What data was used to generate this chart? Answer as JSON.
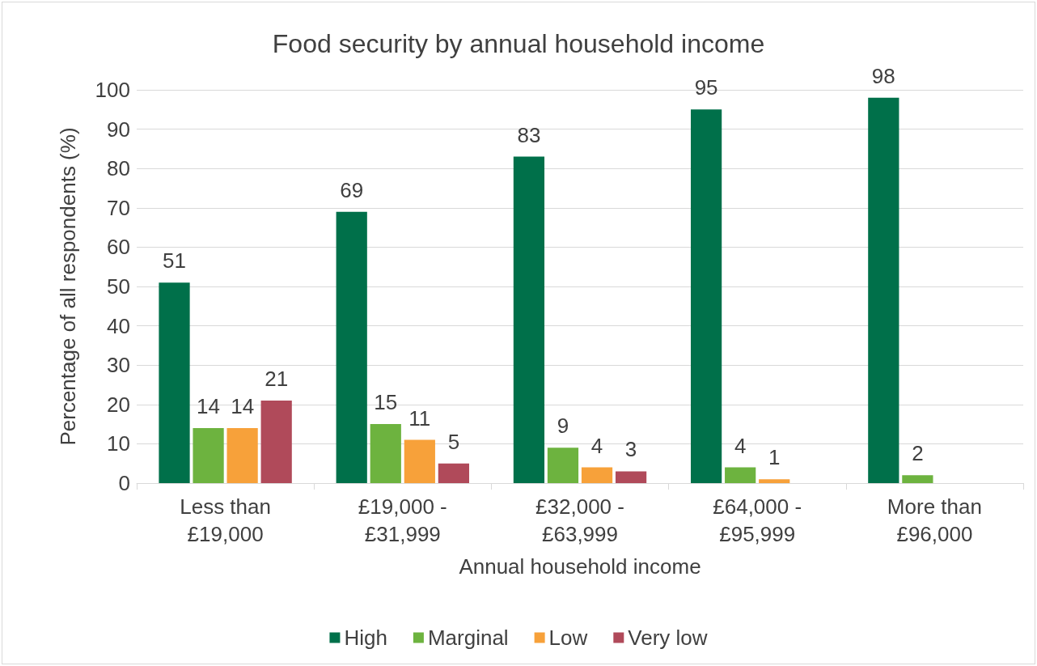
{
  "chart_data": {
    "type": "bar",
    "title": "Food security by annual household income",
    "xlabel": "Annual household income",
    "ylabel": "Percentage of all respondents (%)",
    "categories": [
      "Less than\n£19,000",
      "£19,000 -\n£31,999",
      "£32,000 -\n£63,999",
      "£64,000 -\n£95,999",
      "More than\n£96,000"
    ],
    "series": [
      {
        "name": "High",
        "color": "#00704a",
        "values": [
          51,
          69,
          83,
          95,
          98
        ],
        "value_labels": [
          "51",
          "69",
          "83",
          "95",
          "98"
        ]
      },
      {
        "name": "Marginal",
        "color": "#6db33f",
        "values": [
          14,
          15,
          9,
          4,
          2
        ],
        "value_labels": [
          "14",
          "15",
          "9",
          "4",
          "2"
        ]
      },
      {
        "name": "Low",
        "color": "#f7a13a",
        "values": [
          14,
          11,
          4,
          1,
          null
        ],
        "value_labels": [
          "14",
          "11",
          "4",
          "1",
          null
        ]
      },
      {
        "name": "Very low",
        "color": "#b04a5a",
        "values": [
          21,
          5,
          3,
          null,
          null
        ],
        "value_labels": [
          "21",
          "5",
          "3",
          null,
          null
        ]
      }
    ],
    "ylim": [
      0,
      100
    ],
    "yticks": [
      0,
      10,
      20,
      30,
      40,
      50,
      60,
      70,
      80,
      90,
      100
    ],
    "grid": "y",
    "legend": "bottom"
  }
}
